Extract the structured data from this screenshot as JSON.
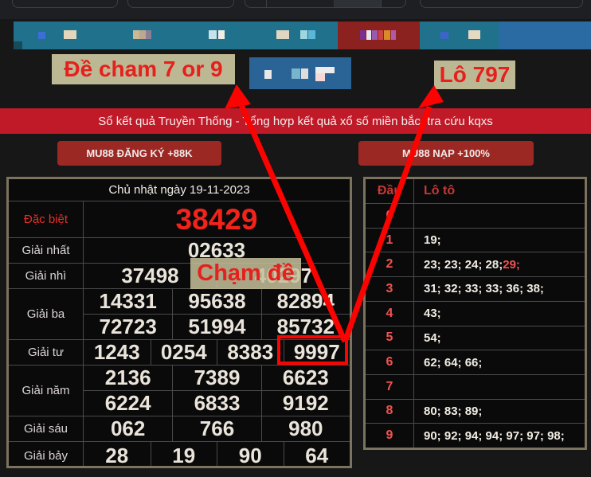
{
  "colors": {
    "accent_red": "#fb0300",
    "banner_red": "#c01a28",
    "button_red": "#9c2823",
    "khaki": "#c6c19b",
    "teal": "#20718c",
    "maroon": "#8b2220",
    "blue": "#2b6ba3",
    "special_red": "#f3231c",
    "loto_red": "#f25252"
  },
  "annotations": {
    "de_cham_label": "Đề cham 7 or 9",
    "lo_label": "Lô 797",
    "cham_de_label": "Chạm đề"
  },
  "banner": {
    "title": "Sổ kết quả Truyền Thống - Tổng hợp kết quả xổ số miền bắc, tra cứu kqxs"
  },
  "buttons": {
    "register_label": "MU88 ĐĂNG KÝ +88K",
    "deposit_label": "MU88 NẠP +100%"
  },
  "results_table": {
    "date_header": "Chủ nhật ngày 19-11-2023",
    "highlighted_number": "9997",
    "rows": [
      {
        "label": "Đặc biệt",
        "type": "special",
        "cols": 1,
        "numbers": [
          "38429"
        ]
      },
      {
        "label": "Giải nhất",
        "cols": 1,
        "numbers": [
          "02633"
        ]
      },
      {
        "label": "Giải nhì",
        "cols": 2,
        "numbers": [
          "37498",
          "40297"
        ]
      },
      {
        "label": "Giải ba",
        "cols": 3,
        "numbers": [
          "14331",
          "95638",
          "82894",
          "72723",
          "51994",
          "85732"
        ]
      },
      {
        "label": "Giải tư",
        "cols": 4,
        "numbers": [
          "1243",
          "0254",
          "8383",
          "9997"
        ]
      },
      {
        "label": "Giải năm",
        "cols": 3,
        "numbers": [
          "2136",
          "7389",
          "6623",
          "6224",
          "6833",
          "9192"
        ]
      },
      {
        "label": "Giải sáu",
        "cols": 3,
        "numbers": [
          "062",
          "766",
          "980"
        ]
      },
      {
        "label": "Giải bảy",
        "cols": 4,
        "numbers": [
          "28",
          "19",
          "90",
          "64"
        ]
      }
    ]
  },
  "loto_table": {
    "col_dau": "Đầu",
    "col_loto": "Lô tô",
    "rows": [
      {
        "dau": "0",
        "values": "",
        "values_red": ""
      },
      {
        "dau": "1",
        "values": "19;",
        "values_red": ""
      },
      {
        "dau": "2",
        "values": "23; 23; 24; 28; ",
        "values_red": "29;"
      },
      {
        "dau": "3",
        "values": "31; 32; 33; 33; 36; 38;",
        "values_red": ""
      },
      {
        "dau": "4",
        "values": "43;",
        "values_red": ""
      },
      {
        "dau": "5",
        "values": "54;",
        "values_red": ""
      },
      {
        "dau": "6",
        "values": "62; 64; 66;",
        "values_red": ""
      },
      {
        "dau": "7",
        "values": "",
        "values_red": ""
      },
      {
        "dau": "8",
        "values": "80; 83; 89;",
        "values_red": ""
      },
      {
        "dau": "9",
        "values": "90; 92; 94; 94; 97; 97; 98;",
        "values_red": ""
      }
    ]
  }
}
